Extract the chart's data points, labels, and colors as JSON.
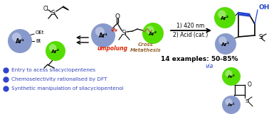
{
  "bg_color": "#ffffff",
  "blue_bullet_color": "#3344cc",
  "bullet_text_color": "#3344bb",
  "green_color": "#55dd00",
  "blue_sphere_color": "#8899cc",
  "red_text_color": "#dd2200",
  "brown_text_color": "#996633",
  "blue_oh_color": "#2244cc",
  "blue_bond_color": "#2244cc",
  "bullets": [
    "Entry to acess silacyclopentenes",
    "Chemoselectivity rationalised by DFT",
    "Synthetic manipulation of silacyclopentenol"
  ],
  "reaction_cond1": "1) 420 nm",
  "reaction_cond2": "2) Acid (cat.)",
  "yield_text": "14 examples: 50-85%",
  "via_text": "via",
  "umpolung_text": "umpolung",
  "cross_text": "Cross",
  "metathesis_text": "Metathesis"
}
